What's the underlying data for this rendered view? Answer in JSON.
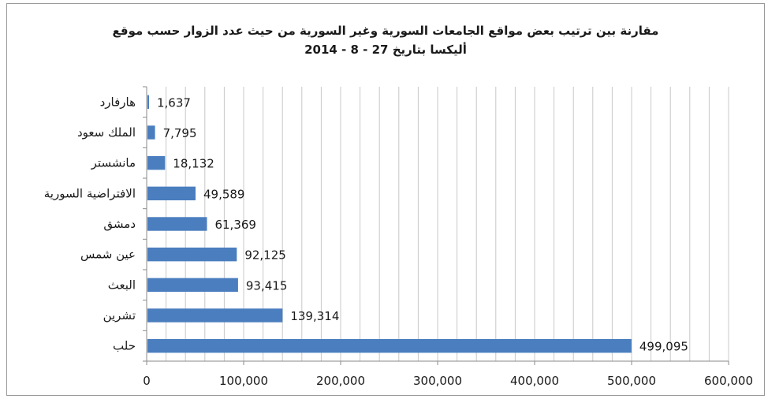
{
  "chart_data": {
    "type": "bar",
    "orientation": "horizontal",
    "title": [
      "مقارنة بين ترتيب بعض مواقع الجامعات السورية وغير السورية من حيث عدد الزوار حسب موقع",
      "أليكسا بتاريخ 27 - 8 - 2014"
    ],
    "categories": [
      "هارفارد",
      "الملك سعود",
      "مانشستر",
      "الافتراضية السورية",
      "دمشق",
      "عين شمس",
      "البعث",
      "تشرين",
      "حلب"
    ],
    "values": [
      1637,
      7795,
      18132,
      49589,
      61369,
      92125,
      93415,
      139314,
      499095
    ],
    "value_labels": [
      "1,637",
      "7,795",
      "18,132",
      "49,589",
      "61,369",
      "92,125",
      "93,415",
      "139,314",
      "499,095"
    ],
    "xlim": [
      0,
      600000
    ],
    "xticks": [
      0,
      100000,
      200000,
      300000,
      400000,
      500000,
      600000
    ],
    "xtick_labels": [
      "0",
      "100,000",
      "200,000",
      "300,000",
      "400,000",
      "500,000",
      "600,000"
    ],
    "minor_grid_step": 20000,
    "grid": true,
    "legend": "none",
    "xlabel": "",
    "ylabel": "",
    "bar_color": "#4a7ebf",
    "grid_color": "#c8c8c8"
  }
}
